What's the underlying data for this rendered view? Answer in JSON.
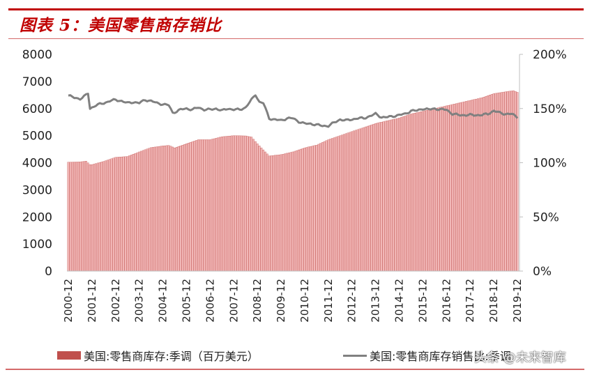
{
  "header": {
    "title": "图表 5：美国零售商存销比"
  },
  "colors": {
    "accent_red": "#c00000",
    "bar_fill": "#f2b8b8",
    "bar_stroke": "#c0504d",
    "line": "#808080"
  },
  "legend": {
    "bar_label": "美国:零售商库存:季调（百万美元）",
    "line_label": "美国:零售商库存销售比:季调"
  },
  "watermark": "头条 @未来智库",
  "chart_data": {
    "type": "bar+line",
    "title": "图表 5：美国零售商存销比",
    "xlabel": "",
    "ylabel_left": "美国:零售商库存:季调（百万美元）",
    "ylabel_right": "美国:零售商库存销售比:季调",
    "ylim_left": [
      0,
      8000
    ],
    "ylim_right": [
      0,
      200
    ],
    "yticks_left": [
      "0",
      "1000",
      "2000",
      "3000",
      "4000",
      "5000",
      "6000",
      "7000",
      "8000"
    ],
    "yticks_right": [
      "0%",
      "50%",
      "100%",
      "150%",
      "200%"
    ],
    "xticks": [
      "2000-12",
      "2001-12",
      "2002-12",
      "2003-12",
      "2004-12",
      "2005-12",
      "2006-12",
      "2007-12",
      "2008-12",
      "2009-12",
      "2010-12",
      "2011-12",
      "2012-12",
      "2013-12",
      "2014-12",
      "2015-12",
      "2016-12",
      "2017-12",
      "2018-12",
      "2019-12"
    ],
    "grid": false,
    "legend_position": "bottom",
    "x_start": "2000-12",
    "x_end": "2019-12",
    "frequency": "monthly",
    "series": [
      {
        "name": "美国:零售商库存:季调（百万美元）",
        "type": "bar",
        "axis": "left",
        "anchors": [
          [
            "2000-12",
            4020
          ],
          [
            "2001-06",
            4030
          ],
          [
            "2001-09",
            4060
          ],
          [
            "2001-11",
            3930
          ],
          [
            "2001-12",
            3930
          ],
          [
            "2002-06",
            4050
          ],
          [
            "2002-12",
            4200
          ],
          [
            "2003-06",
            4230
          ],
          [
            "2003-12",
            4400
          ],
          [
            "2004-06",
            4560
          ],
          [
            "2004-12",
            4620
          ],
          [
            "2005-03",
            4640
          ],
          [
            "2005-06",
            4550
          ],
          [
            "2005-12",
            4700
          ],
          [
            "2006-06",
            4850
          ],
          [
            "2006-12",
            4850
          ],
          [
            "2007-06",
            4960
          ],
          [
            "2007-12",
            5000
          ],
          [
            "2008-06",
            4990
          ],
          [
            "2008-09",
            4950
          ],
          [
            "2008-12",
            4700
          ],
          [
            "2009-06",
            4250
          ],
          [
            "2009-12",
            4300
          ],
          [
            "2010-06",
            4400
          ],
          [
            "2010-12",
            4550
          ],
          [
            "2011-06",
            4650
          ],
          [
            "2011-12",
            4850
          ],
          [
            "2012-06",
            5000
          ],
          [
            "2012-12",
            5150
          ],
          [
            "2013-06",
            5300
          ],
          [
            "2013-12",
            5450
          ],
          [
            "2014-06",
            5550
          ],
          [
            "2014-12",
            5650
          ],
          [
            "2015-06",
            5800
          ],
          [
            "2015-12",
            5900
          ],
          [
            "2016-06",
            6000
          ],
          [
            "2016-12",
            6100
          ],
          [
            "2017-06",
            6200
          ],
          [
            "2017-12",
            6300
          ],
          [
            "2018-06",
            6400
          ],
          [
            "2018-12",
            6550
          ],
          [
            "2019-06",
            6620
          ],
          [
            "2019-10",
            6660
          ],
          [
            "2019-12",
            6600
          ]
        ]
      },
      {
        "name": "美国:零售商库存销售比:季调",
        "type": "line",
        "axis": "right",
        "unit": "%",
        "anchors": [
          [
            "2000-12",
            162
          ],
          [
            "2001-03",
            160
          ],
          [
            "2001-06",
            159
          ],
          [
            "2001-08",
            161
          ],
          [
            "2001-10",
            164
          ],
          [
            "2001-11",
            150
          ],
          [
            "2002-02",
            153
          ],
          [
            "2002-06",
            155
          ],
          [
            "2002-09",
            157
          ],
          [
            "2002-12",
            158
          ],
          [
            "2003-03",
            157
          ],
          [
            "2003-06",
            155
          ],
          [
            "2003-09",
            156
          ],
          [
            "2003-12",
            155
          ],
          [
            "2004-03",
            158
          ],
          [
            "2004-06",
            157
          ],
          [
            "2004-09",
            155
          ],
          [
            "2004-12",
            154
          ],
          [
            "2005-03",
            153
          ],
          [
            "2005-05",
            146
          ],
          [
            "2005-09",
            149
          ],
          [
            "2005-12",
            150
          ],
          [
            "2006-03",
            149
          ],
          [
            "2006-06",
            151
          ],
          [
            "2006-09",
            149
          ],
          [
            "2006-12",
            149
          ],
          [
            "2007-03",
            150
          ],
          [
            "2007-06",
            148
          ],
          [
            "2007-09",
            150
          ],
          [
            "2007-12",
            149
          ],
          [
            "2008-03",
            149
          ],
          [
            "2008-06",
            151
          ],
          [
            "2008-09",
            158
          ],
          [
            "2008-11",
            163
          ],
          [
            "2009-01",
            156
          ],
          [
            "2009-03",
            155
          ],
          [
            "2009-06",
            141
          ],
          [
            "2009-08",
            140
          ],
          [
            "2009-12",
            139
          ],
          [
            "2010-03",
            141
          ],
          [
            "2010-06",
            141
          ],
          [
            "2010-09",
            138
          ],
          [
            "2010-12",
            136
          ],
          [
            "2011-03",
            136
          ],
          [
            "2011-06",
            135
          ],
          [
            "2011-09",
            134
          ],
          [
            "2011-12",
            134
          ],
          [
            "2012-03",
            137
          ],
          [
            "2012-06",
            140
          ],
          [
            "2012-09",
            139
          ],
          [
            "2012-12",
            140
          ],
          [
            "2013-03",
            141
          ],
          [
            "2013-06",
            141
          ],
          [
            "2013-09",
            143
          ],
          [
            "2013-12",
            145
          ],
          [
            "2014-03",
            142
          ],
          [
            "2014-06",
            142
          ],
          [
            "2014-09",
            143
          ],
          [
            "2014-12",
            144
          ],
          [
            "2015-03",
            145
          ],
          [
            "2015-06",
            148
          ],
          [
            "2015-09",
            148
          ],
          [
            "2015-12",
            150
          ],
          [
            "2016-03",
            149
          ],
          [
            "2016-06",
            150
          ],
          [
            "2016-09",
            149
          ],
          [
            "2016-12",
            149
          ],
          [
            "2017-03",
            145
          ],
          [
            "2017-06",
            144
          ],
          [
            "2017-09",
            144
          ],
          [
            "2017-12",
            144
          ],
          [
            "2018-03",
            144
          ],
          [
            "2018-06",
            144
          ],
          [
            "2018-09",
            145
          ],
          [
            "2018-12",
            148
          ],
          [
            "2019-03",
            146
          ],
          [
            "2019-06",
            145
          ],
          [
            "2019-09",
            145
          ],
          [
            "2019-12",
            142
          ]
        ]
      }
    ]
  }
}
